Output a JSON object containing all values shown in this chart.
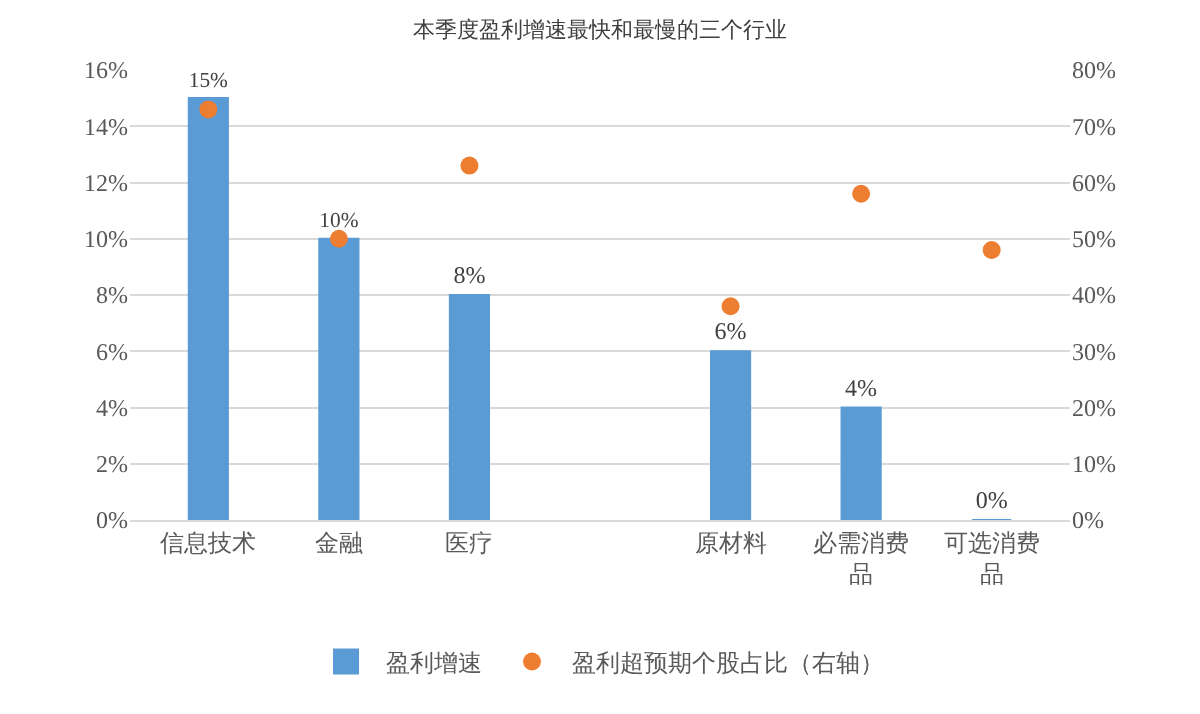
{
  "chart_data": {
    "type": "bar",
    "title": "本季度盈利增速最快和最慢的三个行业",
    "categories": [
      "信息技术",
      "金融",
      "医疗",
      null,
      "原材料",
      "必需消费品",
      "可选消费品"
    ],
    "series": [
      {
        "name": "盈利增速",
        "color": "#5b9bd5",
        "values": [
          15,
          10,
          8,
          null,
          6,
          4,
          0
        ],
        "value_labels": [
          "15%",
          "10%",
          "8%",
          null,
          "6%",
          "4%",
          "0%"
        ]
      },
      {
        "name": "盈利超预期个股占比（右轴）",
        "type": "scatter",
        "axis": "y2",
        "color": "#ed7d31",
        "marker": "circle",
        "values": [
          73,
          50,
          63,
          null,
          38,
          58,
          48
        ]
      }
    ],
    "ylim": [
      0,
      16
    ],
    "yticks": [
      {
        "value": 0,
        "label": "0%"
      },
      {
        "value": 2,
        "label": "2%"
      },
      {
        "value": 4,
        "label": "4%"
      },
      {
        "value": 6,
        "label": "6%"
      },
      {
        "value": 8,
        "label": "8%"
      },
      {
        "value": 10,
        "label": "10%"
      },
      {
        "value": 12,
        "label": "12%"
      },
      {
        "value": 14,
        "label": "14%"
      },
      {
        "value": 16,
        "label": "16%"
      }
    ],
    "y2lim": [
      0,
      80
    ],
    "y2ticks": [
      {
        "value": 0,
        "label": "0%"
      },
      {
        "value": 10,
        "label": "10%"
      },
      {
        "value": 20,
        "label": "20%"
      },
      {
        "value": 30,
        "label": "30%"
      },
      {
        "value": 40,
        "label": "40%"
      },
      {
        "value": 50,
        "label": "50%"
      },
      {
        "value": 60,
        "label": "60%"
      },
      {
        "value": 70,
        "label": "70%"
      },
      {
        "value": 80,
        "label": "80%"
      }
    ],
    "grid": "y",
    "legend": "bottom"
  }
}
